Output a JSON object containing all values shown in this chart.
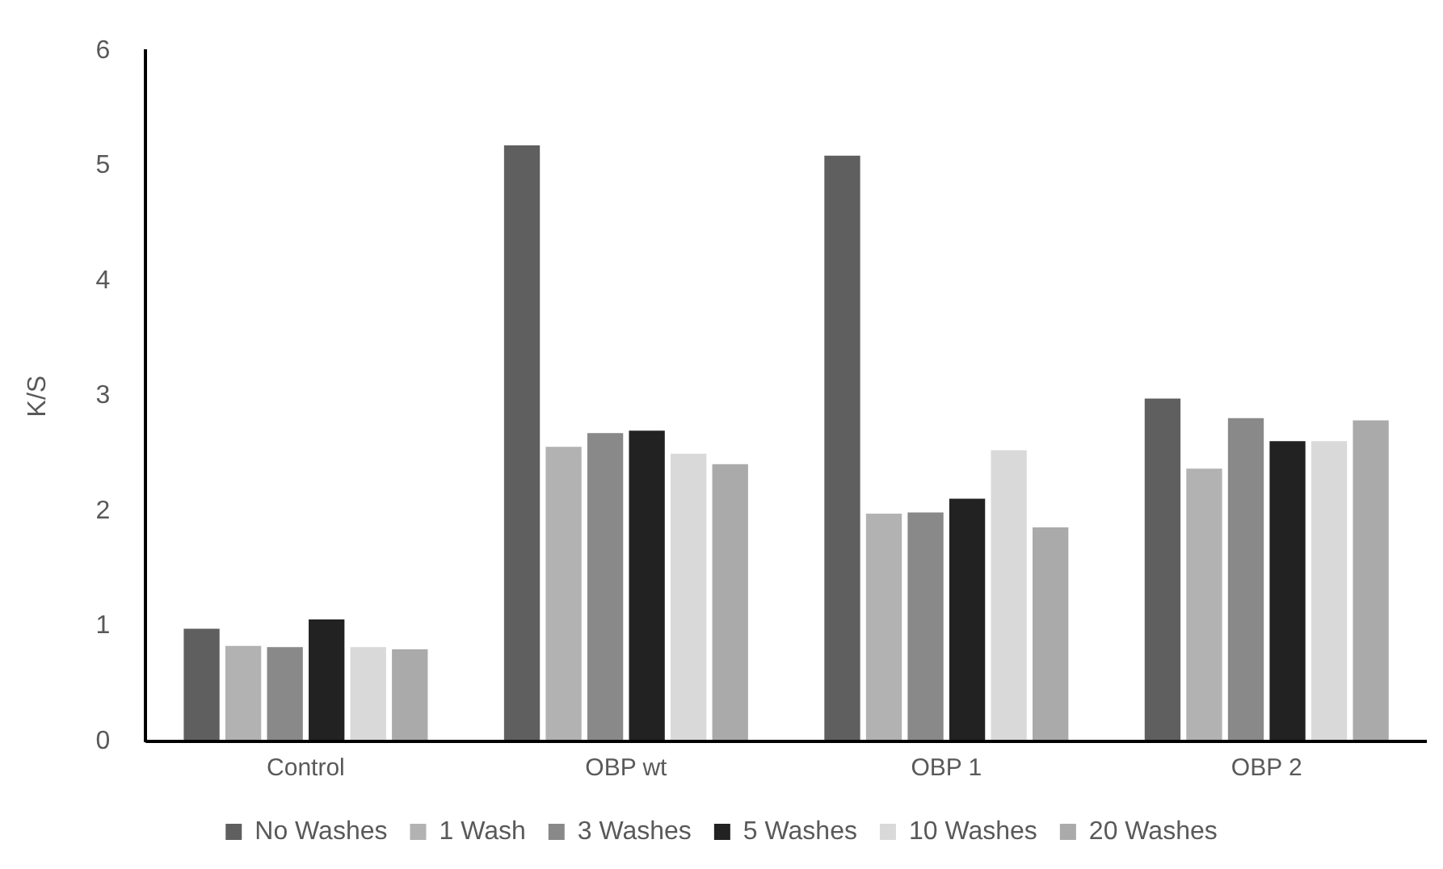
{
  "chart_data": {
    "type": "bar",
    "ylabel": "K/S",
    "categories": [
      "Control",
      "OBP wt",
      "OBP 1",
      "OBP 2"
    ],
    "series": [
      {
        "name": "No Washes",
        "color": "#5f5f5f",
        "values": [
          0.98,
          5.18,
          5.09,
          2.98
        ]
      },
      {
        "name": "1 Wash",
        "color": "#b2b2b2",
        "values": [
          0.83,
          2.56,
          1.98,
          2.37
        ]
      },
      {
        "name": "3 Washes",
        "color": "#898989",
        "values": [
          0.82,
          2.68,
          1.99,
          2.81
        ]
      },
      {
        "name": "5 Washes",
        "color": "#222222",
        "values": [
          1.06,
          2.7,
          2.11,
          2.61
        ]
      },
      {
        "name": "10 Washes",
        "color": "#d9d9d9",
        "values": [
          0.82,
          2.5,
          2.53,
          2.61
        ]
      },
      {
        "name": "20 Washes",
        "color": "#aaaaaa",
        "values": [
          0.8,
          2.41,
          1.86,
          2.79
        ]
      }
    ],
    "ylim": [
      0,
      6
    ],
    "yticks": [
      0,
      1,
      2,
      3,
      4,
      5,
      6
    ],
    "grid": false,
    "legend": "bottom"
  }
}
